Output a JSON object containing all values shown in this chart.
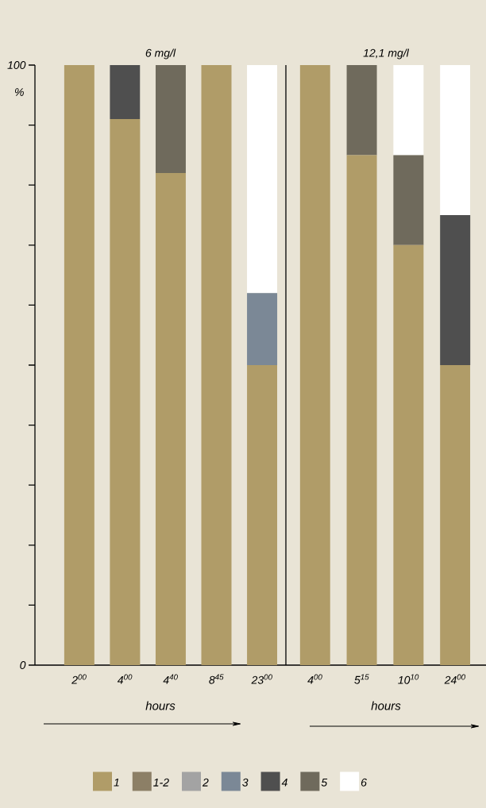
{
  "chart_data": [
    {
      "type": "bar",
      "stacked": true,
      "title": "6 mg/l",
      "xlabel": "hours",
      "ylabel": "%",
      "legend": "bottom",
      "categories": [
        "2$^{00}$",
        "4$^{00}$",
        "4$^{40}$",
        "8$^{45}$",
        "23$^{00}$"
      ],
      "ylim": [
        0,
        100
      ],
      "yticks": [
        0,
        {
          "value": 10,
          "label": null
        },
        {
          "value": 20,
          "label": null
        },
        {
          "value": 30,
          "label": null
        },
        {
          "value": 40,
          "label": null
        },
        {
          "value": 50,
          "label": null
        },
        {
          "value": 60,
          "label": null
        },
        {
          "value": 70,
          "label": null
        },
        {
          "value": 80,
          "label": null
        },
        {
          "value": 90,
          "label": null
        },
        100
      ],
      "series": [
        {
          "name": "1",
          "color": "#b09c68",
          "values": [
            100,
            91,
            82,
            100,
            50
          ]
        },
        {
          "name": "1-2",
          "color": "#8c7f66",
          "values": [
            0,
            0,
            0,
            0,
            0
          ]
        },
        {
          "name": "2",
          "color": "#a3a3a3",
          "values": [
            0,
            0,
            0,
            0,
            0
          ]
        },
        {
          "name": "3",
          "color": "#7b8896",
          "values": [
            0,
            0,
            0,
            0,
            12
          ]
        },
        {
          "name": "4",
          "color": "#4f4f4f",
          "values": [
            0,
            9,
            0,
            0,
            0
          ]
        },
        {
          "name": "5",
          "color": "#6f6a5c",
          "values": [
            0,
            0,
            18,
            0,
            0
          ]
        },
        {
          "name": "6",
          "color": "#ffffff",
          "values": [
            0,
            0,
            0,
            0,
            38
          ]
        }
      ]
    },
    {
      "type": "bar",
      "stacked": true,
      "title": "12,1 mg/l",
      "xlabel": "hours",
      "tick_labels": "x",
      "categories": [
        "4$^{00}$",
        "5$^{15}$",
        "10$^{10}$",
        "24$^{00}$"
      ],
      "ylim": [
        0,
        100
      ],
      "series": [
        {
          "color": "#b09c68",
          "values": [
            100,
            85,
            70,
            50
          ]
        },
        {
          "color": "#8c7f66",
          "values": [
            0,
            0,
            0,
            0
          ]
        },
        {
          "color": "#a3a3a3",
          "values": [
            0,
            0,
            0,
            0
          ]
        },
        {
          "color": "#7b8896",
          "values": [
            0,
            0,
            0,
            0
          ]
        },
        {
          "color": "#4f4f4f",
          "values": [
            0,
            0,
            0,
            25
          ]
        },
        {
          "color": "#6f6a5c",
          "values": [
            0,
            15,
            15,
            0
          ]
        },
        {
          "color": "#ffffff",
          "values": [
            0,
            0,
            15,
            25
          ]
        }
      ]
    }
  ]
}
